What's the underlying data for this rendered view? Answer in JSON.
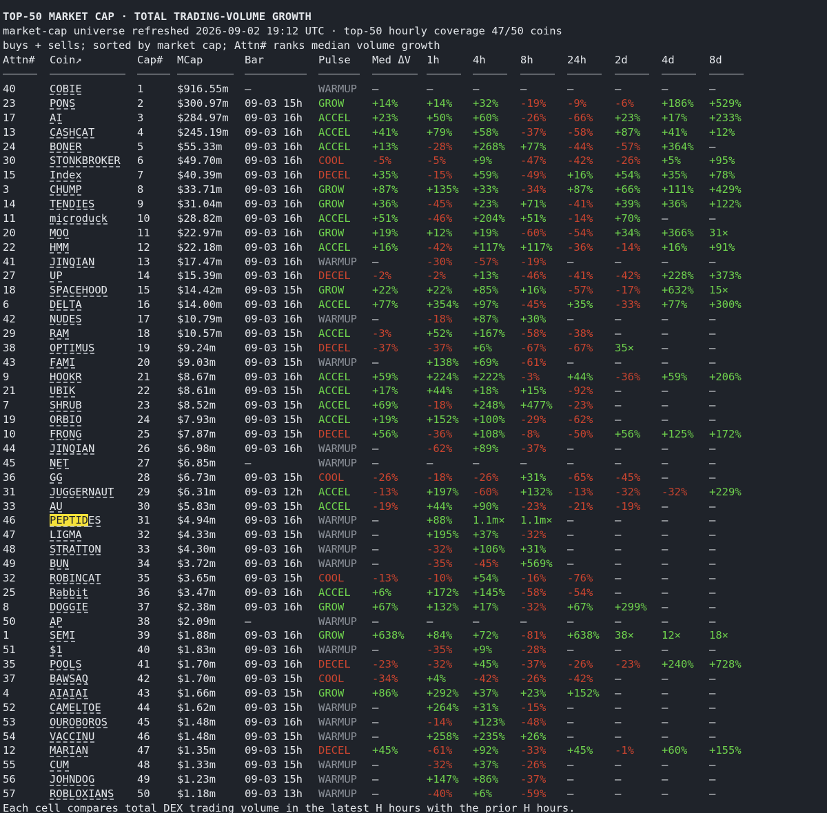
{
  "header": {
    "title": "TOP-50 MARKET CAP · TOTAL TRADING-VOLUME GROWTH",
    "subtitle1": "market-cap universe refreshed 2026-09-02 19:12 UTC · top-50 hourly coverage 47/50 coins",
    "subtitle2": "buys + sells; sorted by market cap; Attn# ranks median volume growth"
  },
  "columns": [
    "Attn#",
    "Coin↗",
    "Cap#",
    "MCap",
    "Bar",
    "Pulse",
    "Med ΔV",
    "1h",
    "4h",
    "8h",
    "24h",
    "2d",
    "4d",
    "8d"
  ],
  "highlight": {
    "row": 30,
    "prefix": "PEPTID",
    "suffix": "ES",
    "color": "#f5e13a"
  },
  "colors": {
    "background": "#1f232a",
    "text": "#e3e6ea",
    "positive": "#6fd24d",
    "negative": "#c9442f",
    "warmup": "#8c9199"
  },
  "rows": [
    [
      "40",
      "COBIE",
      "1",
      "$916.55m",
      "—",
      "WARMUP",
      "—",
      "—",
      "—",
      "—",
      "—",
      "—",
      "—",
      "—"
    ],
    [
      "23",
      "PONS",
      "2",
      "$300.97m",
      "09-03 15h",
      "GROW",
      "+14%",
      "+14%",
      "+32%",
      "-19%",
      "-9%",
      "-6%",
      "+186%",
      "+529%"
    ],
    [
      "17",
      "AI",
      "3",
      "$284.97m",
      "09-03 16h",
      "ACCEL",
      "+23%",
      "+50%",
      "+60%",
      "-26%",
      "-66%",
      "+23%",
      "+17%",
      "+233%"
    ],
    [
      "13",
      "CASHCAT",
      "4",
      "$245.19m",
      "09-03 16h",
      "ACCEL",
      "+41%",
      "+79%",
      "+58%",
      "-37%",
      "-58%",
      "+87%",
      "+41%",
      "+12%"
    ],
    [
      "24",
      "BONER",
      "5",
      "$55.33m",
      "09-03 16h",
      "ACCEL",
      "+13%",
      "-28%",
      "+268%",
      "+77%",
      "-44%",
      "-57%",
      "+364%",
      "—"
    ],
    [
      "30",
      "STONKBROKER",
      "6",
      "$49.70m",
      "09-03 16h",
      "COOL",
      "-5%",
      "-5%",
      "+9%",
      "-47%",
      "-42%",
      "-26%",
      "+5%",
      "+95%"
    ],
    [
      "15",
      "Index",
      "7",
      "$40.39m",
      "09-03 16h",
      "DECEL",
      "+35%",
      "-15%",
      "+59%",
      "-49%",
      "+16%",
      "+54%",
      "+35%",
      "+78%"
    ],
    [
      "3",
      "CHUMP",
      "8",
      "$33.71m",
      "09-03 16h",
      "GROW",
      "+87%",
      "+135%",
      "+33%",
      "-34%",
      "+87%",
      "+66%",
      "+111%",
      "+429%"
    ],
    [
      "14",
      "TENDIES",
      "9",
      "$31.04m",
      "09-03 16h",
      "GROW",
      "+36%",
      "-45%",
      "+23%",
      "+71%",
      "-41%",
      "+39%",
      "+36%",
      "+122%"
    ],
    [
      "11",
      "microduck",
      "10",
      "$28.82m",
      "09-03 16h",
      "ACCEL",
      "+51%",
      "-46%",
      "+204%",
      "+51%",
      "-14%",
      "+70%",
      "—",
      "—"
    ],
    [
      "20",
      "MOO",
      "11",
      "$22.97m",
      "09-03 16h",
      "GROW",
      "+19%",
      "+12%",
      "+19%",
      "-60%",
      "-54%",
      "+34%",
      "+366%",
      "31×"
    ],
    [
      "22",
      "HMM",
      "12",
      "$22.18m",
      "09-03 16h",
      "ACCEL",
      "+16%",
      "-42%",
      "+117%",
      "+117%",
      "-36%",
      "-14%",
      "+16%",
      "+91%"
    ],
    [
      "41",
      "JINQIAN",
      "13",
      "$17.47m",
      "09-03 16h",
      "WARMUP",
      "—",
      "-30%",
      "-57%",
      "-19%",
      "—",
      "—",
      "—",
      "—"
    ],
    [
      "27",
      "UP",
      "14",
      "$15.39m",
      "09-03 16h",
      "DECEL",
      "-2%",
      "-2%",
      "+13%",
      "-46%",
      "-41%",
      "-42%",
      "+228%",
      "+373%"
    ],
    [
      "18",
      "SPACEHOOD",
      "15",
      "$14.42m",
      "09-03 15h",
      "GROW",
      "+22%",
      "+22%",
      "+85%",
      "+16%",
      "-57%",
      "-17%",
      "+632%",
      "15×"
    ],
    [
      "6",
      "DELTA",
      "16",
      "$14.00m",
      "09-03 16h",
      "ACCEL",
      "+77%",
      "+354%",
      "+97%",
      "-45%",
      "+35%",
      "-33%",
      "+77%",
      "+300%"
    ],
    [
      "42",
      "NUDES",
      "17",
      "$10.79m",
      "09-03 16h",
      "WARMUP",
      "—",
      "-18%",
      "+87%",
      "+30%",
      "—",
      "—",
      "—",
      "—"
    ],
    [
      "29",
      "RAM",
      "18",
      "$10.57m",
      "09-03 15h",
      "ACCEL",
      "-3%",
      "+52%",
      "+167%",
      "-58%",
      "-38%",
      "—",
      "—",
      "—"
    ],
    [
      "38",
      "OPTIMUS",
      "19",
      "$9.24m",
      "09-03 15h",
      "DECEL",
      "-37%",
      "-37%",
      "+6%",
      "-67%",
      "-67%",
      "35×",
      "—",
      "—"
    ],
    [
      "43",
      "FAMI",
      "20",
      "$9.03m",
      "09-03 15h",
      "WARMUP",
      "—",
      "+138%",
      "+69%",
      "-61%",
      "—",
      "—",
      "—",
      "—"
    ],
    [
      "9",
      "HOOKR",
      "21",
      "$8.67m",
      "09-03 16h",
      "ACCEL",
      "+59%",
      "+224%",
      "+222%",
      "-3%",
      "+44%",
      "-36%",
      "+59%",
      "+206%"
    ],
    [
      "21",
      "UBIK",
      "22",
      "$8.61m",
      "09-03 15h",
      "ACCEL",
      "+17%",
      "+44%",
      "+18%",
      "+15%",
      "-92%",
      "—",
      "—",
      "—"
    ],
    [
      "7",
      "SHRUB",
      "23",
      "$8.52m",
      "09-03 15h",
      "ACCEL",
      "+69%",
      "-18%",
      "+248%",
      "+477%",
      "-23%",
      "—",
      "—",
      "—"
    ],
    [
      "19",
      "ORBIO",
      "24",
      "$7.93m",
      "09-03 15h",
      "ACCEL",
      "+19%",
      "+152%",
      "+100%",
      "-29%",
      "-62%",
      "—",
      "—",
      "—"
    ],
    [
      "10",
      "FRONG",
      "25",
      "$7.87m",
      "09-03 15h",
      "DECEL",
      "+56%",
      "-36%",
      "+108%",
      "-8%",
      "-50%",
      "+56%",
      "+125%",
      "+172%"
    ],
    [
      "44",
      "JINQIAN",
      "26",
      "$6.98m",
      "09-03 16h",
      "WARMUP",
      "—",
      "-62%",
      "+89%",
      "-37%",
      "—",
      "—",
      "—",
      "—"
    ],
    [
      "45",
      "NET",
      "27",
      "$6.85m",
      "—",
      "WARMUP",
      "—",
      "—",
      "—",
      "—",
      "—",
      "—",
      "—",
      "—"
    ],
    [
      "36",
      "GG",
      "28",
      "$6.73m",
      "09-03 15h",
      "COOL",
      "-26%",
      "-18%",
      "-26%",
      "+31%",
      "-65%",
      "-45%",
      "—",
      "—"
    ],
    [
      "31",
      "JUGGERNAUT",
      "29",
      "$6.31m",
      "09-03 12h",
      "ACCEL",
      "-13%",
      "+197%",
      "-60%",
      "+132%",
      "-13%",
      "-32%",
      "-32%",
      "+229%"
    ],
    [
      "33",
      "AU",
      "30",
      "$5.83m",
      "09-03 15h",
      "ACCEL",
      "-19%",
      "+44%",
      "+90%",
      "-23%",
      "-21%",
      "-19%",
      "—",
      "—"
    ],
    [
      "46",
      "PEPTIDES",
      "31",
      "$4.94m",
      "09-03 16h",
      "WARMUP",
      "—",
      "+88%",
      "1.1m×",
      "1.1m×",
      "—",
      "—",
      "—",
      "—"
    ],
    [
      "47",
      "LIGMA",
      "32",
      "$4.33m",
      "09-03 15h",
      "WARMUP",
      "—",
      "+195%",
      "+37%",
      "-32%",
      "—",
      "—",
      "—",
      "—"
    ],
    [
      "48",
      "STRATTON",
      "33",
      "$4.30m",
      "09-03 16h",
      "WARMUP",
      "—",
      "-32%",
      "+106%",
      "+31%",
      "—",
      "—",
      "—",
      "—"
    ],
    [
      "49",
      "BUN",
      "34",
      "$3.72m",
      "09-03 16h",
      "WARMUP",
      "—",
      "-35%",
      "-45%",
      "+569%",
      "—",
      "—",
      "—",
      "—"
    ],
    [
      "32",
      "ROBINCAT",
      "35",
      "$3.65m",
      "09-03 15h",
      "COOL",
      "-13%",
      "-10%",
      "+54%",
      "-16%",
      "-76%",
      "—",
      "—",
      "—"
    ],
    [
      "25",
      "Rabbit",
      "36",
      "$3.47m",
      "09-03 16h",
      "ACCEL",
      "+6%",
      "+172%",
      "+145%",
      "-58%",
      "-54%",
      "—",
      "—",
      "—"
    ],
    [
      "8",
      "DOGGIE",
      "37",
      "$2.38m",
      "09-03 16h",
      "GROW",
      "+67%",
      "+132%",
      "+17%",
      "-32%",
      "+67%",
      "+299%",
      "—",
      "—"
    ],
    [
      "50",
      "AP",
      "38",
      "$2.09m",
      "—",
      "WARMUP",
      "—",
      "—",
      "—",
      "—",
      "—",
      "—",
      "—",
      "—"
    ],
    [
      "1",
      "SEMI",
      "39",
      "$1.88m",
      "09-03 16h",
      "GROW",
      "+638%",
      "+84%",
      "+72%",
      "-81%",
      "+638%",
      "38×",
      "12×",
      "18×"
    ],
    [
      "51",
      "$1",
      "40",
      "$1.83m",
      "09-03 16h",
      "WARMUP",
      "—",
      "-35%",
      "+9%",
      "-28%",
      "—",
      "—",
      "—",
      "—"
    ],
    [
      "35",
      "POOLS",
      "41",
      "$1.70m",
      "09-03 16h",
      "DECEL",
      "-23%",
      "-32%",
      "+45%",
      "-37%",
      "-26%",
      "-23%",
      "+240%",
      "+728%"
    ],
    [
      "37",
      "BAWSAQ",
      "42",
      "$1.70m",
      "09-03 15h",
      "COOL",
      "-34%",
      "+4%",
      "-42%",
      "-26%",
      "-42%",
      "—",
      "—",
      "—"
    ],
    [
      "4",
      "AIAIAI",
      "43",
      "$1.66m",
      "09-03 15h",
      "GROW",
      "+86%",
      "+292%",
      "+37%",
      "+23%",
      "+152%",
      "—",
      "—",
      "—"
    ],
    [
      "52",
      "CAMELTOE",
      "44",
      "$1.62m",
      "09-03 15h",
      "WARMUP",
      "—",
      "+264%",
      "+31%",
      "-15%",
      "—",
      "—",
      "—",
      "—"
    ],
    [
      "53",
      "OUROBOROS",
      "45",
      "$1.48m",
      "09-03 16h",
      "WARMUP",
      "—",
      "-14%",
      "+123%",
      "-48%",
      "—",
      "—",
      "—",
      "—"
    ],
    [
      "54",
      "VACCINU",
      "46",
      "$1.48m",
      "09-03 15h",
      "WARMUP",
      "—",
      "+258%",
      "+235%",
      "+26%",
      "—",
      "—",
      "—",
      "—"
    ],
    [
      "12",
      "MARIAN",
      "47",
      "$1.35m",
      "09-03 15h",
      "DECEL",
      "+45%",
      "-61%",
      "+92%",
      "-33%",
      "+45%",
      "-1%",
      "+60%",
      "+155%"
    ],
    [
      "55",
      "CUM",
      "48",
      "$1.33m",
      "09-03 15h",
      "WARMUP",
      "—",
      "-32%",
      "+37%",
      "-26%",
      "—",
      "—",
      "—",
      "—"
    ],
    [
      "56",
      "JOHNDOG",
      "49",
      "$1.23m",
      "09-03 15h",
      "WARMUP",
      "—",
      "+147%",
      "+86%",
      "-37%",
      "—",
      "—",
      "—",
      "—"
    ],
    [
      "57",
      "ROBLOXIANS",
      "50",
      "$1.18m",
      "09-03 13h",
      "WARMUP",
      "—",
      "-40%",
      "+6%",
      "-59%",
      "—",
      "—",
      "—",
      "—"
    ]
  ],
  "footer": "Each cell compares total DEX trading volume in the latest H hours with the prior H hours."
}
